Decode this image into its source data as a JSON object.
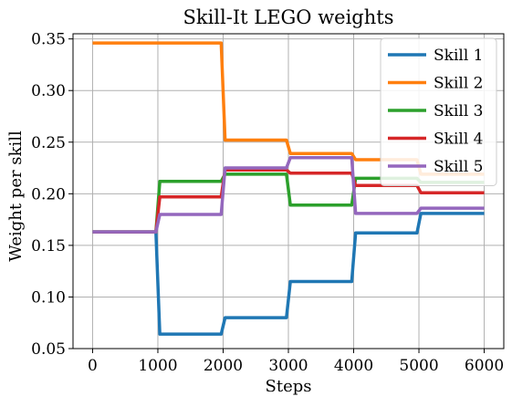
{
  "chart_data": {
    "type": "line",
    "title": "Skill-It LEGO weights",
    "xlabel": "Steps",
    "ylabel": "Weight per skill",
    "xlim": [
      -300,
      6300
    ],
    "ylim": [
      0.05,
      0.355
    ],
    "xticks": [
      0,
      1000,
      2000,
      3000,
      4000,
      5000,
      6000
    ],
    "yticks": [
      0.05,
      0.1,
      0.15,
      0.2,
      0.25,
      0.3,
      0.35
    ],
    "xtick_labels": [
      "0",
      "1000",
      "2000",
      "3000",
      "4000",
      "5000",
      "6000"
    ],
    "ytick_labels": [
      "0.05",
      "0.10",
      "0.15",
      "0.20",
      "0.25",
      "0.30",
      "0.35"
    ],
    "grid": true,
    "legend_position": "top-right",
    "series": [
      {
        "name": "Skill 1",
        "color": "#1f77b4",
        "points": [
          [
            0,
            0.163
          ],
          [
            970,
            0.163
          ],
          [
            1030,
            0.064
          ],
          [
            1970,
            0.064
          ],
          [
            2030,
            0.08
          ],
          [
            2970,
            0.08
          ],
          [
            3030,
            0.115
          ],
          [
            3970,
            0.115
          ],
          [
            4030,
            0.162
          ],
          [
            4970,
            0.162
          ],
          [
            5030,
            0.181
          ],
          [
            6000,
            0.181
          ]
        ]
      },
      {
        "name": "Skill 2",
        "color": "#ff7f0e",
        "points": [
          [
            0,
            0.346
          ],
          [
            970,
            0.346
          ],
          [
            1030,
            0.346
          ],
          [
            1970,
            0.346
          ],
          [
            2030,
            0.252
          ],
          [
            2970,
            0.252
          ],
          [
            3030,
            0.239
          ],
          [
            3970,
            0.239
          ],
          [
            4030,
            0.233
          ],
          [
            4970,
            0.233
          ],
          [
            5030,
            0.219
          ],
          [
            6000,
            0.219
          ]
        ]
      },
      {
        "name": "Skill 3",
        "color": "#2ca02c",
        "points": [
          [
            0,
            0.163
          ],
          [
            970,
            0.163
          ],
          [
            1030,
            0.212
          ],
          [
            1970,
            0.212
          ],
          [
            2030,
            0.219
          ],
          [
            2970,
            0.219
          ],
          [
            3030,
            0.189
          ],
          [
            3970,
            0.189
          ],
          [
            4030,
            0.215
          ],
          [
            4970,
            0.215
          ],
          [
            5030,
            0.211
          ],
          [
            6000,
            0.211
          ]
        ]
      },
      {
        "name": "Skill 4",
        "color": "#d62728",
        "points": [
          [
            0,
            0.163
          ],
          [
            970,
            0.163
          ],
          [
            1030,
            0.197
          ],
          [
            1970,
            0.197
          ],
          [
            2030,
            0.223
          ],
          [
            2970,
            0.223
          ],
          [
            3030,
            0.22
          ],
          [
            3970,
            0.22
          ],
          [
            4030,
            0.208
          ],
          [
            4970,
            0.208
          ],
          [
            5030,
            0.201
          ],
          [
            6000,
            0.201
          ]
        ]
      },
      {
        "name": "Skill 5",
        "color": "#9467bd",
        "points": [
          [
            0,
            0.163
          ],
          [
            970,
            0.163
          ],
          [
            1030,
            0.18
          ],
          [
            1970,
            0.18
          ],
          [
            2030,
            0.225
          ],
          [
            2970,
            0.225
          ],
          [
            3030,
            0.235
          ],
          [
            3970,
            0.235
          ],
          [
            4030,
            0.181
          ],
          [
            4970,
            0.181
          ],
          [
            5030,
            0.186
          ],
          [
            6000,
            0.186
          ]
        ]
      }
    ]
  }
}
